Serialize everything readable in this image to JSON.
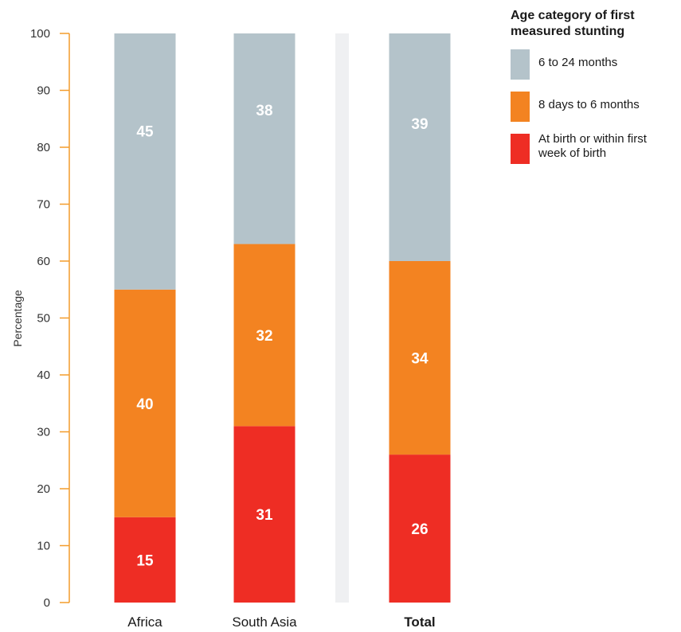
{
  "chart_data": {
    "type": "bar",
    "stacked": true,
    "categories": [
      "Africa",
      "South Asia",
      "Total"
    ],
    "ylabel": "Percentage",
    "ylim": [
      0,
      100
    ],
    "yticks": [
      0,
      10,
      20,
      30,
      40,
      50,
      60,
      70,
      80,
      90,
      100
    ],
    "grid": false,
    "legend_placement": "top-right",
    "legend_title": "Age category of first measured stunting",
    "series": [
      {
        "name": "At birth or within first week of birth",
        "color": "#ee2d24",
        "values": [
          15,
          31,
          26
        ]
      },
      {
        "name": "8 days to 6 months",
        "color": "#f38321",
        "values": [
          40,
          32,
          34
        ]
      },
      {
        "name": "6 to 24 months",
        "color": "#b4c3ca",
        "values": [
          45,
          38,
          39
        ]
      }
    ]
  },
  "colors": {
    "axis": "#f39c2b",
    "separator": "#eff0f2"
  }
}
